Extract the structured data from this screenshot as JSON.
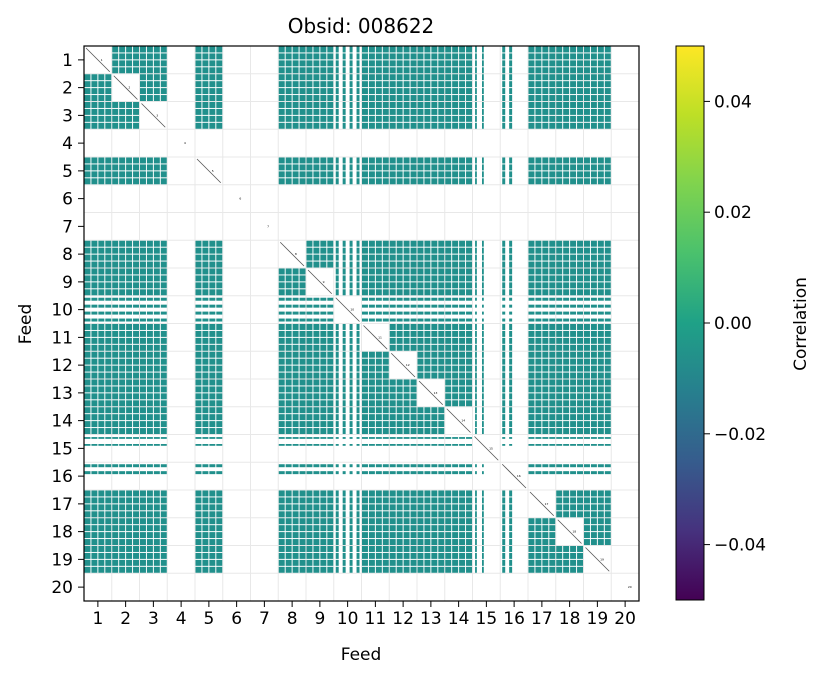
{
  "chart_data": {
    "type": "heatmap",
    "title": "Obsid: 008622",
    "xlabel": "Feed",
    "ylabel": "Feed",
    "x_ticks": [
      "1",
      "2",
      "3",
      "4",
      "5",
      "6",
      "7",
      "8",
      "9",
      "10",
      "11",
      "12",
      "13",
      "14",
      "15",
      "16",
      "17",
      "18",
      "19",
      "20"
    ],
    "y_ticks": [
      "1",
      "2",
      "3",
      "4",
      "5",
      "6",
      "7",
      "8",
      "9",
      "10",
      "11",
      "12",
      "13",
      "14",
      "15",
      "16",
      "17",
      "18",
      "19",
      "20"
    ],
    "n_feeds": 20,
    "sidebands_per_feed": 4,
    "active_feeds": [
      1,
      2,
      3,
      5,
      8,
      9,
      10,
      11,
      12,
      13,
      14,
      15,
      16,
      17,
      18,
      19
    ],
    "masked_feeds": [
      4,
      6,
      7,
      20
    ],
    "sideband_activity": {
      "1": [
        1,
        1,
        1,
        1
      ],
      "2": [
        1,
        1,
        1,
        1
      ],
      "3": [
        1,
        1,
        1,
        1
      ],
      "5": [
        1,
        1,
        1,
        1
      ],
      "8": [
        1,
        1,
        1,
        1
      ],
      "9": [
        1,
        1,
        1,
        1
      ],
      "10": [
        0.5,
        0.5,
        0.5,
        0.5
      ],
      "11": [
        1,
        1,
        1,
        1
      ],
      "12": [
        1,
        1,
        1,
        1
      ],
      "13": [
        1,
        1,
        1,
        1
      ],
      "14": [
        1,
        1,
        1,
        1
      ],
      "15": [
        0.3,
        0.3,
        0,
        0
      ],
      "16": [
        0.5,
        0.5,
        0,
        0
      ],
      "17": [
        1,
        1,
        1,
        1
      ],
      "18": [
        1,
        1,
        1,
        1
      ],
      "19": [
        1,
        1,
        1,
        1
      ]
    },
    "cell_value": 0.0,
    "colorbar": {
      "label": "Correlation",
      "vmin": -0.05,
      "vmax": 0.05,
      "ticks": [
        0.04,
        0.02,
        0.0,
        -0.02,
        -0.04
      ],
      "tick_labels": [
        "0.04",
        "0.02",
        "0.00",
        "−0.02",
        "−0.04"
      ],
      "colormap": "viridis"
    },
    "colors": {
      "cell": "#21908c",
      "grid": "#e8e8e8",
      "diagonal": "#555555"
    }
  }
}
